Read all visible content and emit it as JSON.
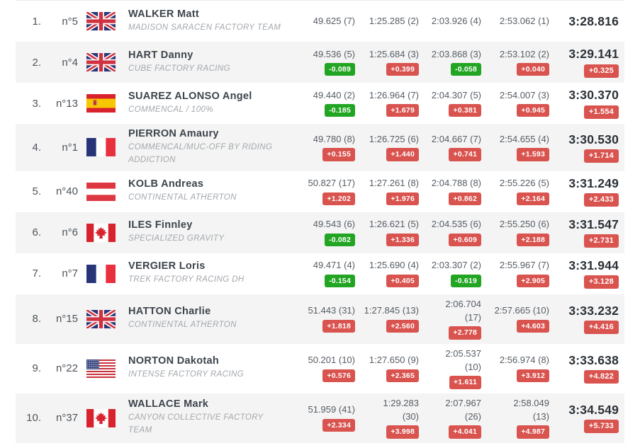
{
  "colors": {
    "delta_slower": "#d9534f",
    "delta_faster": "#22a522",
    "row_alt_background": "#f4f4f4"
  },
  "results": {
    "rows": [
      {
        "position": "1.",
        "race_number": "n°5",
        "flag": "gb",
        "name": "WALKER Matt",
        "team": "MADISON SARACEN FACTORY TEAM",
        "splits": [
          {
            "time": "49.625",
            "rank": "(7)"
          },
          {
            "time": "1:25.285",
            "rank": "(2)"
          },
          {
            "time": "2:03.926",
            "rank": "(4)"
          },
          {
            "time": "2:53.062",
            "rank": "(1)"
          }
        ],
        "final": {
          "time": "3:28.816"
        }
      },
      {
        "position": "2.",
        "race_number": "n°4",
        "flag": "gb",
        "name": "HART Danny",
        "team": "CUBE FACTORY RACING",
        "splits": [
          {
            "time": "49.536",
            "rank": "(5)",
            "delta": "-0.089"
          },
          {
            "time": "1:25.684",
            "rank": "(3)",
            "delta": "+0.399"
          },
          {
            "time": "2:03.868",
            "rank": "(3)",
            "delta": "-0.058"
          },
          {
            "time": "2:53.102",
            "rank": "(2)",
            "delta": "+0.040"
          }
        ],
        "final": {
          "time": "3:29.141",
          "delta": "+0.325"
        }
      },
      {
        "position": "3.",
        "race_number": "n°13",
        "flag": "es",
        "name": "SUAREZ ALONSO Angel",
        "team": "COMMENCAL / 100%",
        "splits": [
          {
            "time": "49.440",
            "rank": "(2)",
            "delta": "-0.185"
          },
          {
            "time": "1:26.964",
            "rank": "(7)",
            "delta": "+1.679"
          },
          {
            "time": "2:04.307",
            "rank": "(5)",
            "delta": "+0.381"
          },
          {
            "time": "2:54.007",
            "rank": "(3)",
            "delta": "+0.945"
          }
        ],
        "final": {
          "time": "3:30.370",
          "delta": "+1.554"
        }
      },
      {
        "position": "4.",
        "race_number": "n°1",
        "flag": "fr",
        "name": "PIERRON Amaury",
        "team": "COMMENCAL/MUC-OFF BY RIDING ADDICTION",
        "splits": [
          {
            "time": "49.780",
            "rank": "(8)",
            "delta": "+0.155"
          },
          {
            "time": "1:26.725",
            "rank": "(6)",
            "delta": "+1.440"
          },
          {
            "time": "2:04.667",
            "rank": "(7)",
            "delta": "+0.741"
          },
          {
            "time": "2:54.655",
            "rank": "(4)",
            "delta": "+1.593"
          }
        ],
        "final": {
          "time": "3:30.530",
          "delta": "+1.714"
        }
      },
      {
        "position": "5.",
        "race_number": "n°40",
        "flag": "at",
        "name": "KOLB Andreas",
        "team": "CONTINENTAL ATHERTON",
        "splits": [
          {
            "time": "50.827",
            "rank": "(17)",
            "delta": "+1.202"
          },
          {
            "time": "1:27.261",
            "rank": "(8)",
            "delta": "+1.976"
          },
          {
            "time": "2:04.788",
            "rank": "(8)",
            "delta": "+0.862"
          },
          {
            "time": "2:55.226",
            "rank": "(5)",
            "delta": "+2.164"
          }
        ],
        "final": {
          "time": "3:31.249",
          "delta": "+2.433"
        }
      },
      {
        "position": "6.",
        "race_number": "n°6",
        "flag": "ca",
        "name": "ILES Finnley",
        "team": "SPECIALIZED GRAVITY",
        "splits": [
          {
            "time": "49.543",
            "rank": "(6)",
            "delta": "-0.082"
          },
          {
            "time": "1:26.621",
            "rank": "(5)",
            "delta": "+1.336"
          },
          {
            "time": "2:04.535",
            "rank": "(6)",
            "delta": "+0.609"
          },
          {
            "time": "2:55.250",
            "rank": "(6)",
            "delta": "+2.188"
          }
        ],
        "final": {
          "time": "3:31.547",
          "delta": "+2.731"
        }
      },
      {
        "position": "7.",
        "race_number": "n°7",
        "flag": "fr",
        "name": "VERGIER Loris",
        "team": "TREK FACTORY RACING DH",
        "splits": [
          {
            "time": "49.471",
            "rank": "(4)",
            "delta": "-0.154"
          },
          {
            "time": "1:25.690",
            "rank": "(4)",
            "delta": "+0.405"
          },
          {
            "time": "2:03.307",
            "rank": "(2)",
            "delta": "-0.619"
          },
          {
            "time": "2:55.967",
            "rank": "(7)",
            "delta": "+2.905"
          }
        ],
        "final": {
          "time": "3:31.944",
          "delta": "+3.128"
        }
      },
      {
        "position": "8.",
        "race_number": "n°15",
        "flag": "gb",
        "name": "HATTON Charlie",
        "team": "CONTINENTAL ATHERTON",
        "splits": [
          {
            "time": "51.443",
            "rank": "(31)",
            "delta": "+1.818"
          },
          {
            "time": "1:27.845",
            "rank": "(13)",
            "delta": "+2.560"
          },
          {
            "time": "2:06.704",
            "rank": "(17)",
            "delta": "+2.778",
            "stack": true
          },
          {
            "time": "2:57.665",
            "rank": "(10)",
            "delta": "+4.603"
          }
        ],
        "final": {
          "time": "3:33.232",
          "delta": "+4.416"
        }
      },
      {
        "position": "9.",
        "race_number": "n°22",
        "flag": "us",
        "name": "NORTON Dakotah",
        "team": "INTENSE FACTORY RACING",
        "splits": [
          {
            "time": "50.201",
            "rank": "(10)",
            "delta": "+0.576"
          },
          {
            "time": "1:27.650",
            "rank": "(9)",
            "delta": "+2.365"
          },
          {
            "time": "2:05.537",
            "rank": "(10)",
            "delta": "+1.611",
            "stack": true
          },
          {
            "time": "2:56.974",
            "rank": "(8)",
            "delta": "+3.912"
          }
        ],
        "final": {
          "time": "3:33.638",
          "delta": "+4.822"
        }
      },
      {
        "position": "10.",
        "race_number": "n°37",
        "flag": "ca",
        "name": "WALLACE Mark",
        "team": "CANYON COLLECTIVE FACTORY TEAM",
        "splits": [
          {
            "time": "51.959",
            "rank": "(41)",
            "delta": "+2.334"
          },
          {
            "time": "1:29.283",
            "rank": "(30)",
            "delta": "+3.998",
            "stack": true
          },
          {
            "time": "2:07.967",
            "rank": "(26)",
            "delta": "+4.041",
            "stack": true
          },
          {
            "time": "2:58.049",
            "rank": "(13)",
            "delta": "+4.987",
            "stack": true
          }
        ],
        "final": {
          "time": "3:34.549",
          "delta": "+5.733"
        }
      }
    ]
  }
}
